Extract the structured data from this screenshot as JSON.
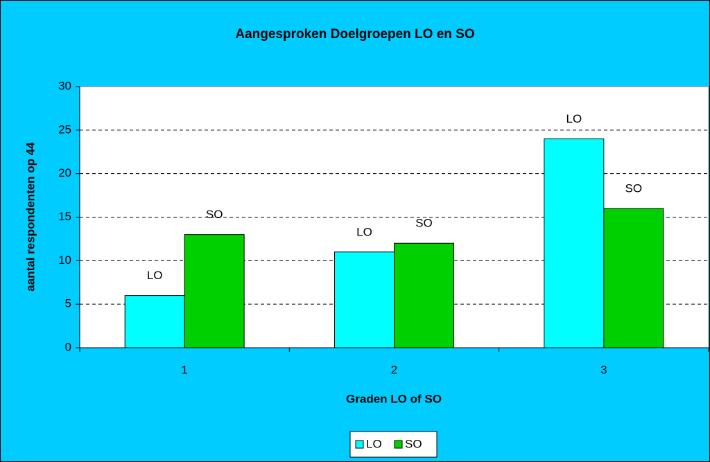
{
  "chart_data": {
    "type": "bar",
    "title": "Aangesproken Doelgroepen LO en SO",
    "xlabel": "Graden LO of SO",
    "ylabel": "aantal respondenten op 44",
    "categories": [
      "1",
      "2",
      "3"
    ],
    "series": [
      {
        "name": "LO",
        "color": "#00ffff",
        "values": [
          6,
          11,
          24
        ]
      },
      {
        "name": "SO",
        "color": "#00d000",
        "values": [
          13,
          12,
          16
        ]
      }
    ],
    "ylim": [
      0,
      30
    ],
    "yticks": [
      0,
      5,
      10,
      15,
      20,
      25,
      30
    ],
    "grid": true,
    "legend": "bottom"
  }
}
